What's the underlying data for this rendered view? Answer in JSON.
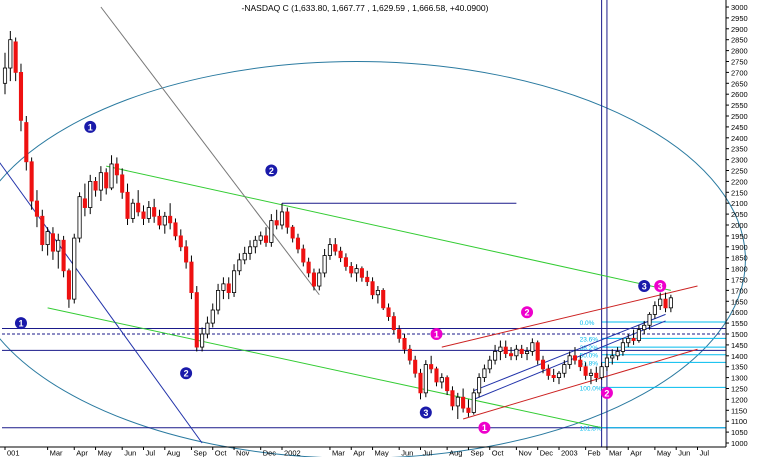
{
  "chart_data": {
    "type": "candlestick",
    "title": "-NASDAQ C  (1,633.80, 1,667.77 , 1,629.59 , 1,666.58, +40.0900)",
    "ylim": [
      1000,
      3000
    ],
    "y_ticks": [
      1000,
      1050,
      1100,
      1150,
      1200,
      1250,
      1300,
      1350,
      1400,
      1450,
      1500,
      1550,
      1600,
      1650,
      1700,
      1750,
      1800,
      1850,
      1900,
      1950,
      2000,
      2050,
      2100,
      2150,
      2200,
      2250,
      2300,
      2350,
      2400,
      2450,
      2500,
      2550,
      2600,
      2650,
      2700,
      2750,
      2800,
      2850,
      2900,
      2950,
      3000
    ],
    "x_ticks": [
      {
        "label": "001",
        "week": 0
      },
      {
        "label": "Mar",
        "week": 8
      },
      {
        "label": "Apr",
        "week": 13
      },
      {
        "label": "May",
        "week": 17
      },
      {
        "label": "Jun",
        "week": 22
      },
      {
        "label": "Jul",
        "week": 26
      },
      {
        "label": "Aug",
        "week": 30
      },
      {
        "label": "Sep",
        "week": 35
      },
      {
        "label": "Oct",
        "week": 39
      },
      {
        "label": "Nov",
        "week": 43
      },
      {
        "label": "Dec",
        "week": 48
      },
      {
        "label": "2002",
        "week": 52
      },
      {
        "label": "Mar",
        "week": 61
      },
      {
        "label": "Apr",
        "week": 65
      },
      {
        "label": "May",
        "week": 69
      },
      {
        "label": "Jun",
        "week": 74
      },
      {
        "label": "Jul",
        "week": 78
      },
      {
        "label": "Aug",
        "week": 83
      },
      {
        "label": "Sep",
        "week": 87
      },
      {
        "label": "Oct",
        "week": 91
      },
      {
        "label": "Nov",
        "week": 96
      },
      {
        "label": "Dec",
        "week": 100
      },
      {
        "label": "2003",
        "week": 104
      },
      {
        "label": "Feb",
        "week": 109
      },
      {
        "label": "Mar",
        "week": 113
      },
      {
        "label": "Apr",
        "week": 117
      },
      {
        "label": "May",
        "week": 122
      },
      {
        "label": "Jun",
        "week": 126
      },
      {
        "label": "Jul",
        "week": 130
      }
    ],
    "candles": [
      [
        0,
        2650,
        2790,
        2600,
        2720
      ],
      [
        1,
        2720,
        2890,
        2660,
        2850
      ],
      [
        2,
        2840,
        2860,
        2660,
        2700
      ],
      [
        3,
        2700,
        2740,
        2430,
        2480
      ],
      [
        4,
        2470,
        2500,
        2250,
        2290
      ],
      [
        5,
        2290,
        2310,
        2070,
        2110
      ],
      [
        6,
        2110,
        2160,
        1990,
        2040
      ],
      [
        7,
        2040,
        2070,
        1880,
        1910
      ],
      [
        8,
        1910,
        1990,
        1860,
        1970
      ],
      [
        9,
        1960,
        1990,
        1840,
        1880
      ],
      [
        10,
        1880,
        1960,
        1800,
        1930
      ],
      [
        11,
        1930,
        1950,
        1760,
        1790
      ],
      [
        12,
        1790,
        1800,
        1620,
        1660
      ],
      [
        13,
        1660,
        1960,
        1640,
        1940
      ],
      [
        14,
        1940,
        2150,
        1920,
        2130
      ],
      [
        15,
        2120,
        2190,
        2040,
        2080
      ],
      [
        16,
        2080,
        2230,
        2050,
        2200
      ],
      [
        17,
        2200,
        2220,
        2130,
        2160
      ],
      [
        18,
        2160,
        2270,
        2110,
        2240
      ],
      [
        19,
        2240,
        2260,
        2140,
        2170
      ],
      [
        20,
        2170,
        2320,
        2160,
        2280
      ],
      [
        21,
        2280,
        2310,
        2190,
        2230
      ],
      [
        22,
        2230,
        2260,
        2120,
        2150
      ],
      [
        23,
        2150,
        2190,
        2000,
        2030
      ],
      [
        24,
        2030,
        2120,
        2010,
        2100
      ],
      [
        25,
        2100,
        2160,
        2040,
        2060
      ],
      [
        26,
        2060,
        2090,
        2000,
        2030
      ],
      [
        27,
        2030,
        2110,
        2010,
        2080
      ],
      [
        28,
        2080,
        2120,
        2010,
        2040
      ],
      [
        29,
        2040,
        2070,
        1980,
        2000
      ],
      [
        30,
        2000,
        2060,
        1960,
        2040
      ],
      [
        31,
        2040,
        2100,
        1980,
        2010
      ],
      [
        32,
        2010,
        2030,
        1930,
        1950
      ],
      [
        33,
        1950,
        1980,
        1880,
        1900
      ],
      [
        34,
        1900,
        1930,
        1800,
        1830
      ],
      [
        35,
        1830,
        1860,
        1660,
        1690
      ],
      [
        36,
        1690,
        1720,
        1420,
        1440
      ],
      [
        37,
        1440,
        1530,
        1420,
        1500
      ],
      [
        38,
        1500,
        1580,
        1480,
        1550
      ],
      [
        39,
        1550,
        1640,
        1530,
        1610
      ],
      [
        40,
        1610,
        1730,
        1590,
        1700
      ],
      [
        41,
        1700,
        1760,
        1660,
        1730
      ],
      [
        42,
        1730,
        1760,
        1660,
        1690
      ],
      [
        43,
        1690,
        1820,
        1670,
        1790
      ],
      [
        44,
        1790,
        1870,
        1770,
        1840
      ],
      [
        45,
        1840,
        1900,
        1820,
        1870
      ],
      [
        46,
        1870,
        1930,
        1840,
        1900
      ],
      [
        47,
        1900,
        1950,
        1870,
        1930
      ],
      [
        48,
        1930,
        1970,
        1910,
        1950
      ],
      [
        49,
        1950,
        1990,
        1900,
        1920
      ],
      [
        50,
        1920,
        2050,
        1900,
        2020
      ],
      [
        51,
        2020,
        2070,
        1980,
        2000
      ],
      [
        52,
        2000,
        2100,
        1980,
        2060
      ],
      [
        53,
        2060,
        2080,
        1960,
        1990
      ],
      [
        54,
        1990,
        2000,
        1920,
        1940
      ],
      [
        55,
        1940,
        1960,
        1870,
        1890
      ],
      [
        56,
        1890,
        1910,
        1810,
        1830
      ],
      [
        57,
        1830,
        1850,
        1760,
        1780
      ],
      [
        58,
        1780,
        1800,
        1700,
        1720
      ],
      [
        59,
        1720,
        1800,
        1700,
        1780
      ],
      [
        60,
        1780,
        1890,
        1760,
        1860
      ],
      [
        61,
        1860,
        1940,
        1840,
        1910
      ],
      [
        62,
        1910,
        1940,
        1860,
        1880
      ],
      [
        63,
        1880,
        1900,
        1830,
        1850
      ],
      [
        64,
        1850,
        1870,
        1790,
        1810
      ],
      [
        65,
        1810,
        1830,
        1760,
        1780
      ],
      [
        66,
        1780,
        1820,
        1740,
        1800
      ],
      [
        67,
        1800,
        1810,
        1740,
        1760
      ],
      [
        68,
        1760,
        1790,
        1720,
        1740
      ],
      [
        69,
        1740,
        1760,
        1660,
        1680
      ],
      [
        70,
        1680,
        1720,
        1640,
        1700
      ],
      [
        71,
        1700,
        1710,
        1610,
        1620
      ],
      [
        72,
        1620,
        1640,
        1560,
        1580
      ],
      [
        73,
        1580,
        1600,
        1500,
        1520
      ],
      [
        74,
        1520,
        1540,
        1460,
        1480
      ],
      [
        75,
        1480,
        1500,
        1410,
        1430
      ],
      [
        76,
        1430,
        1450,
        1360,
        1380
      ],
      [
        77,
        1380,
        1400,
        1300,
        1320
      ],
      [
        78,
        1320,
        1340,
        1200,
        1230
      ],
      [
        79,
        1230,
        1380,
        1210,
        1360
      ],
      [
        80,
        1360,
        1400,
        1320,
        1340
      ],
      [
        81,
        1340,
        1350,
        1260,
        1280
      ],
      [
        82,
        1280,
        1320,
        1250,
        1300
      ],
      [
        83,
        1300,
        1310,
        1220,
        1240
      ],
      [
        84,
        1240,
        1260,
        1150,
        1170
      ],
      [
        85,
        1170,
        1230,
        1110,
        1210
      ],
      [
        86,
        1210,
        1250,
        1140,
        1160
      ],
      [
        87,
        1160,
        1200,
        1120,
        1140
      ],
      [
        88,
        1140,
        1250,
        1130,
        1230
      ],
      [
        89,
        1230,
        1320,
        1210,
        1300
      ],
      [
        90,
        1300,
        1360,
        1280,
        1340
      ],
      [
        91,
        1340,
        1400,
        1320,
        1380
      ],
      [
        92,
        1380,
        1450,
        1360,
        1420
      ],
      [
        93,
        1420,
        1470,
        1380,
        1440
      ],
      [
        94,
        1440,
        1470,
        1390,
        1410
      ],
      [
        95,
        1410,
        1440,
        1380,
        1400
      ],
      [
        96,
        1400,
        1450,
        1380,
        1430
      ],
      [
        97,
        1430,
        1450,
        1390,
        1410
      ],
      [
        98,
        1410,
        1440,
        1380,
        1420
      ],
      [
        99,
        1420,
        1480,
        1400,
        1460
      ],
      [
        100,
        1460,
        1470,
        1360,
        1380
      ],
      [
        101,
        1380,
        1400,
        1320,
        1340
      ],
      [
        102,
        1340,
        1360,
        1290,
        1310
      ],
      [
        103,
        1310,
        1340,
        1280,
        1300
      ],
      [
        104,
        1300,
        1330,
        1270,
        1320
      ],
      [
        105,
        1320,
        1380,
        1300,
        1360
      ],
      [
        106,
        1360,
        1420,
        1340,
        1400
      ],
      [
        107,
        1400,
        1440,
        1360,
        1380
      ],
      [
        108,
        1380,
        1400,
        1330,
        1350
      ],
      [
        109,
        1350,
        1370,
        1290,
        1310
      ],
      [
        110,
        1310,
        1340,
        1270,
        1320
      ],
      [
        111,
        1320,
        1350,
        1280,
        1300
      ],
      [
        112,
        1300,
        1370,
        1290,
        1350
      ],
      [
        113,
        1350,
        1410,
        1330,
        1390
      ],
      [
        114,
        1390,
        1430,
        1360,
        1400
      ],
      [
        115,
        1400,
        1440,
        1380,
        1420
      ],
      [
        116,
        1420,
        1480,
        1400,
        1460
      ],
      [
        117,
        1460,
        1500,
        1440,
        1480
      ],
      [
        118,
        1480,
        1520,
        1450,
        1470
      ],
      [
        119,
        1470,
        1540,
        1460,
        1520
      ],
      [
        120,
        1520,
        1560,
        1500,
        1540
      ],
      [
        121,
        1540,
        1600,
        1520,
        1590
      ],
      [
        122,
        1590,
        1650,
        1570,
        1630
      ],
      [
        123,
        1630,
        1690,
        1610,
        1660
      ],
      [
        124,
        1660,
        1690,
        1600,
        1620
      ],
      [
        125,
        1620,
        1680,
        1600,
        1666
      ]
    ],
    "horizontal_lines": [
      {
        "y": 1525,
        "color": "#1a1a8a"
      },
      {
        "y": 1500,
        "color": "#1a1a8a",
        "dash": true
      },
      {
        "y": 1425,
        "color": "#1a1a8a"
      },
      {
        "y": 1070,
        "color": "#1a1a8a"
      }
    ],
    "trend_lines": [
      {
        "w1": 19,
        "y1": 2270,
        "w2": 125,
        "y2": 1700,
        "color": "#33cc33"
      },
      {
        "w1": 8,
        "y1": 1620,
        "w2": 112,
        "y2": 1070,
        "color": "#33cc33"
      },
      {
        "w1": -2,
        "y1": 2320,
        "w2": 37,
        "y2": 1000,
        "color": "#2233aa"
      },
      {
        "w1": 18,
        "y1": 3000,
        "w2": 59,
        "y2": 1680,
        "color": "#777777"
      },
      {
        "w1": 52,
        "y1": 2100,
        "w2": 96,
        "y2": 2100,
        "color": "#1a1a8a"
      },
      {
        "w1": 88,
        "y1": 1200,
        "w2": 124,
        "y2": 1560,
        "color": "#2233aa"
      },
      {
        "w1": 88,
        "y1": 1240,
        "w2": 124,
        "y2": 1590,
        "color": "#2233aa"
      },
      {
        "w1": 82,
        "y1": 1440,
        "w2": 130,
        "y2": 1720,
        "color": "#cc2222"
      },
      {
        "w1": 86,
        "y1": 1110,
        "w2": 130,
        "y2": 1430,
        "color": "#cc2222"
      }
    ],
    "ellipse": {
      "cx_week": 66,
      "cy": 1840,
      "rx_weeks": 73,
      "ry": 910
    },
    "fib_levels": [
      {
        "y": 1555,
        "label": "0.0%"
      },
      {
        "y": 1480,
        "label": "23.6%"
      },
      {
        "y": 1440,
        "label": "38.2%"
      },
      {
        "y": 1405,
        "label": "50.0%"
      },
      {
        "y": 1370,
        "label": "61.8%"
      },
      {
        "y": 1255,
        "label": "100.0%"
      },
      {
        "y": 1070,
        "label": "161.8%"
      }
    ],
    "fib_start_week": 112,
    "vertical_lines": [
      {
        "week": 112,
        "color": "#1a1a8a"
      },
      {
        "week": 113,
        "color": "#1a1a8a"
      }
    ],
    "wave_labels": [
      {
        "text": "1",
        "week": 16,
        "y": 2450,
        "color": "#1a1aaa"
      },
      {
        "text": "2",
        "week": 50,
        "y": 2250,
        "color": "#1a1aaa"
      },
      {
        "text": "1",
        "week": 3,
        "y": 1550,
        "color": "#1a1aaa"
      },
      {
        "text": "2",
        "week": 34,
        "y": 1320,
        "color": "#1a1aaa"
      },
      {
        "text": "3",
        "week": 79,
        "y": 1140,
        "color": "#1a1aaa"
      },
      {
        "text": "1",
        "week": 81,
        "y": 1500,
        "color": "#ee00cc"
      },
      {
        "text": "2",
        "week": 98,
        "y": 1600,
        "color": "#ee00cc"
      },
      {
        "text": "1",
        "week": 90,
        "y": 1070,
        "color": "#ee00cc"
      },
      {
        "text": "2",
        "week": 113,
        "y": 1230,
        "color": "#ee00cc"
      },
      {
        "text": "3",
        "week": 120,
        "y": 1720,
        "color": "#1a1aaa"
      },
      {
        "text": "3",
        "week": 123,
        "y": 1720,
        "color": "#ee00cc"
      }
    ],
    "colors": {
      "up": "#ffffff",
      "down": "#ee1111",
      "wick": "#000000",
      "axis": "#000000",
      "fib": "#00bbee",
      "ellipse": "#2a7aa0"
    }
  }
}
